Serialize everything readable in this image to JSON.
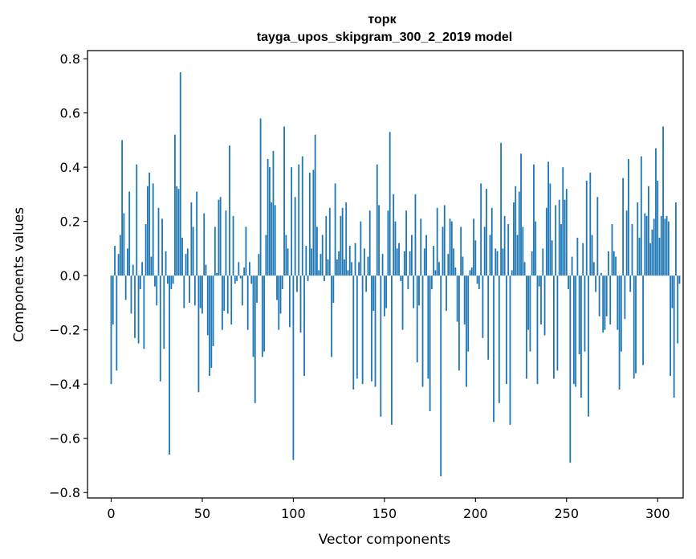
{
  "chart_data": {
    "type": "bar",
    "title_lines": [
      "торк",
      "tayga_upos_skipgram_300_2_2019 model"
    ],
    "xlabel": "Vector components",
    "ylabel": "Components values",
    "xlim": [
      -13,
      314
    ],
    "ylim": [
      -0.82,
      0.83
    ],
    "xticks": [
      0,
      50,
      100,
      150,
      200,
      250,
      300
    ],
    "xtick_labels": [
      "0",
      "50",
      "100",
      "150",
      "200",
      "250",
      "300"
    ],
    "yticks": [
      -0.8,
      -0.6,
      -0.4,
      -0.2,
      0.0,
      0.2,
      0.4,
      0.6,
      0.8
    ],
    "ytick_labels": [
      "−0.8",
      "−0.6",
      "−0.4",
      "−0.2",
      "0.0",
      "0.2",
      "0.4",
      "0.6",
      "0.8"
    ],
    "grid": false,
    "bar_color": "#1f77b4",
    "values": [
      -0.4,
      -0.18,
      0.11,
      -0.35,
      0.08,
      0.15,
      0.5,
      0.23,
      -0.09,
      0.1,
      0.31,
      -0.14,
      0.04,
      -0.23,
      0.41,
      -0.25,
      -0.05,
      0.05,
      -0.27,
      0.19,
      0.33,
      0.38,
      0.07,
      0.34,
      -0.04,
      -0.11,
      0.25,
      -0.39,
      0.21,
      -0.27,
      0.09,
      -0.03,
      -0.66,
      -0.05,
      -0.03,
      0.52,
      0.33,
      0.32,
      0.75,
      0.14,
      -0.12,
      0.08,
      0.1,
      -0.1,
      0.27,
      0.18,
      -0.11,
      0.31,
      -0.43,
      -0.12,
      -0.14,
      0.23,
      0.04,
      -0.22,
      -0.37,
      -0.34,
      -0.26,
      0.18,
      0.01,
      0.28,
      0.29,
      -0.2,
      -0.13,
      0.24,
      -0.14,
      0.48,
      -0.18,
      0.22,
      -0.03,
      -0.02,
      0.05,
      -0.01,
      -0.11,
      0.03,
      0.18,
      -0.2,
      0.05,
      -0.03,
      -0.3,
      -0.47,
      -0.1,
      0.08,
      0.58,
      -0.3,
      -0.28,
      0.15,
      0.43,
      0.4,
      0.27,
      0.46,
      0.26,
      -0.09,
      -0.2,
      -0.14,
      -0.05,
      0.55,
      0.15,
      0.1,
      -0.19,
      0.4,
      -0.68,
      0.29,
      -0.06,
      0.41,
      -0.21,
      0.44,
      -0.37,
      0.11,
      -0.02,
      0.38,
      0.1,
      0.39,
      0.52,
      0.18,
      0.02,
      0.08,
      0.15,
      -0.02,
      0.22,
      0.06,
      0.25,
      -0.3,
      -0.1,
      0.34,
      0.06,
      0.09,
      0.22,
      0.25,
      0.06,
      0.27,
      0.02,
      0.11,
      0.05,
      -0.42,
      0.12,
      -0.38,
      0.05,
      0.2,
      -0.4,
      0.1,
      -0.06,
      0.07,
      0.24,
      -0.39,
      -0.13,
      -0.41,
      0.41,
      0.26,
      -0.52,
      0.08,
      -0.15,
      -0.12,
      0.24,
      0.53,
      -0.55,
      0.3,
      0.2,
      0.1,
      0.12,
      -0.02,
      -0.2,
      0.09,
      0.24,
      -0.05,
      0.09,
      0.15,
      -0.12,
      0.3,
      -0.32,
      -0.11,
      0.21,
      -0.41,
      0.1,
      0.15,
      -0.38,
      -0.5,
      -0.05,
      0.11,
      0.02,
      0.25,
      0.05,
      -0.74,
      0.18,
      0.26,
      -0.13,
      0.08,
      0.21,
      0.2,
      0.1,
      0.03,
      -0.17,
      -0.35,
      0.18,
      0.07,
      -0.18,
      -0.41,
      -0.28,
      0.02,
      0.03,
      0.21,
      0.13,
      -0.03,
      -0.05,
      0.34,
      -0.23,
      0.18,
      0.32,
      -0.31,
      0.15,
      0.25,
      -0.54,
      0.1,
      0.09,
      -0.47,
      0.49,
      0.1,
      0.22,
      -0.4,
      0.19,
      -0.55,
      0.02,
      0.27,
      0.33,
      0.15,
      0.31,
      0.45,
      0.18,
      0.05,
      -0.38,
      -0.2,
      -0.28,
      0.09,
      0.41,
      0.2,
      -0.4,
      -0.04,
      -0.18,
      0.1,
      -0.22,
      0.25,
      0.42,
      0.34,
      0.13,
      -0.38,
      0.26,
      -0.35,
      0.28,
      0.19,
      0.4,
      0.28,
      0.32,
      -0.05,
      -0.69,
      0.07,
      -0.4,
      -0.41,
      0.14,
      -0.29,
      -0.45,
      0.12,
      -0.28,
      0.35,
      -0.52,
      0.38,
      0.15,
      0.05,
      -0.06,
      0.29,
      -0.15,
      0.01,
      -0.21,
      -0.2,
      -0.15,
      0.09,
      -0.18,
      0.19,
      0.09,
      0.07,
      -0.2,
      -0.42,
      -0.28,
      0.36,
      -0.16,
      0.24,
      0.43,
      -0.06,
      0.19,
      -0.38,
      -0.36,
      0.27,
      0.14,
      0.44,
      -0.33,
      0.23,
      0.22,
      0.33,
      0.12,
      0.17,
      0.21,
      0.47,
      0.35,
      0.14,
      0.22,
      0.55,
      0.21,
      0.22,
      0.2,
      -0.37,
      -0.12,
      -0.45,
      0.27,
      -0.25,
      -0.03
    ]
  }
}
